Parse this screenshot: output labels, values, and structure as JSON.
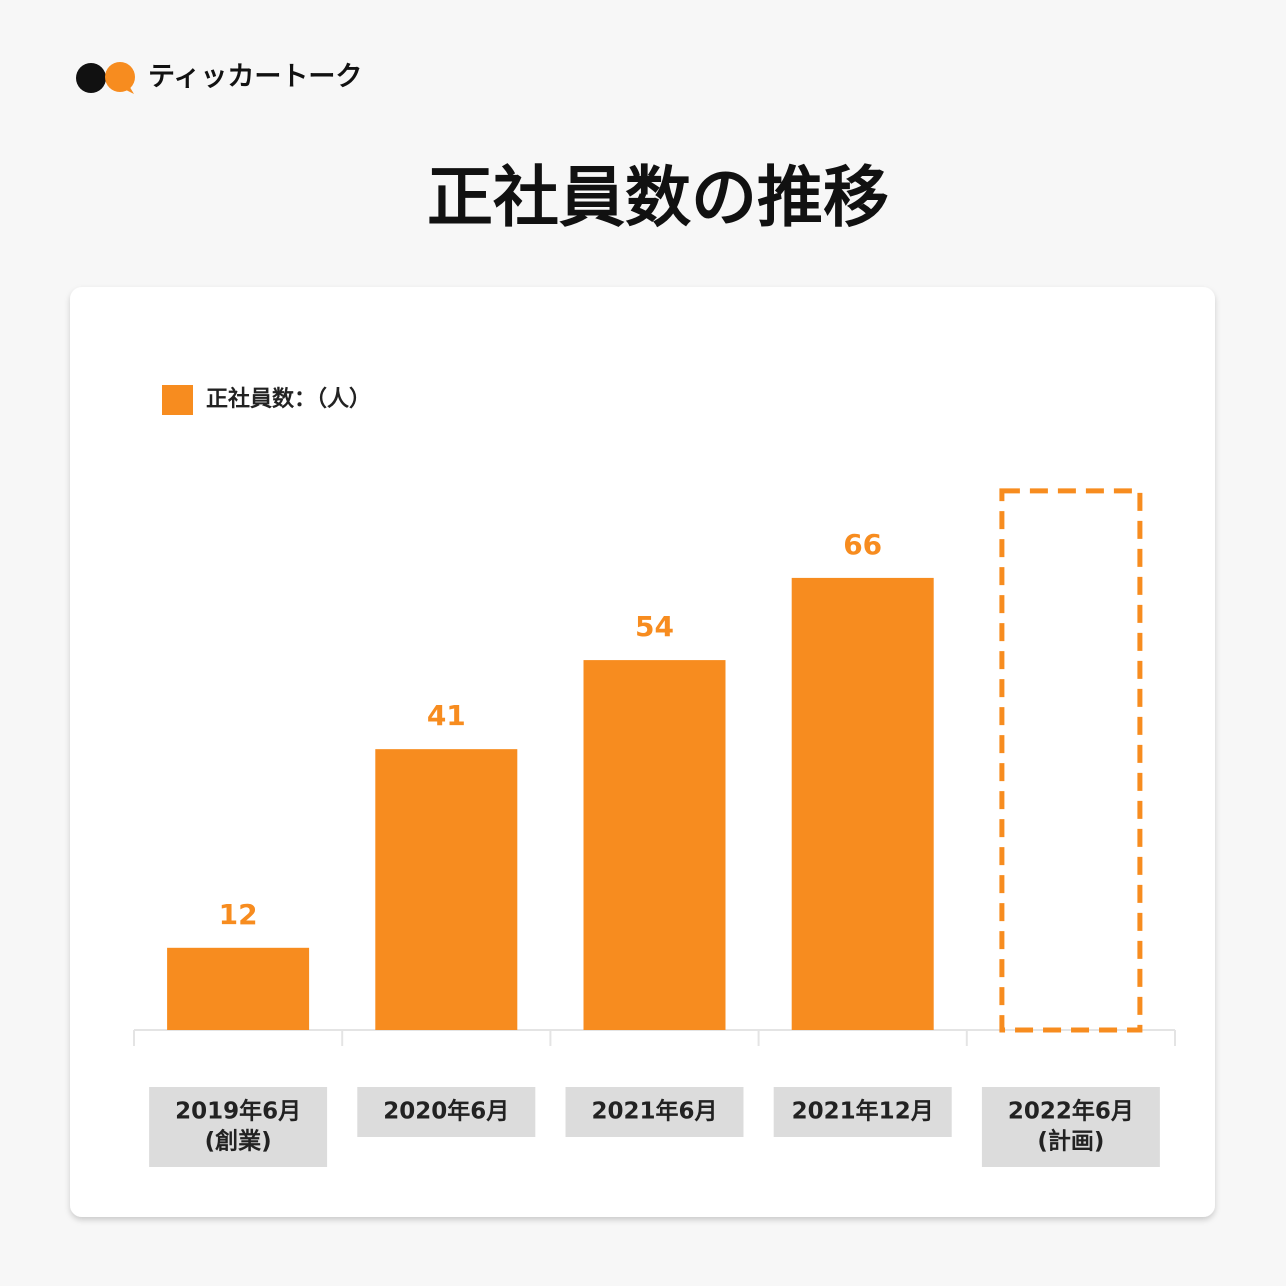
{
  "brand": "ティッカートーク",
  "chart_data": {
    "type": "bar",
    "title": "正社員数の推移",
    "categories": [
      [
        "2019年6月",
        "(創業)"
      ],
      [
        "2020年6月"
      ],
      [
        "2021年6月"
      ],
      [
        "2021年12月"
      ],
      [
        "2022年6月",
        "(計画)"
      ]
    ],
    "series": [
      {
        "name": "正社員数：（人）",
        "color": "#f78c1f",
        "values": [
          12,
          41,
          54,
          66,
          79
        ]
      }
    ],
    "bar_styles": [
      "solid",
      "solid",
      "solid",
      "solid",
      "dashed"
    ],
    "ylim": [
      0,
      80
    ],
    "legend": "top-left"
  }
}
